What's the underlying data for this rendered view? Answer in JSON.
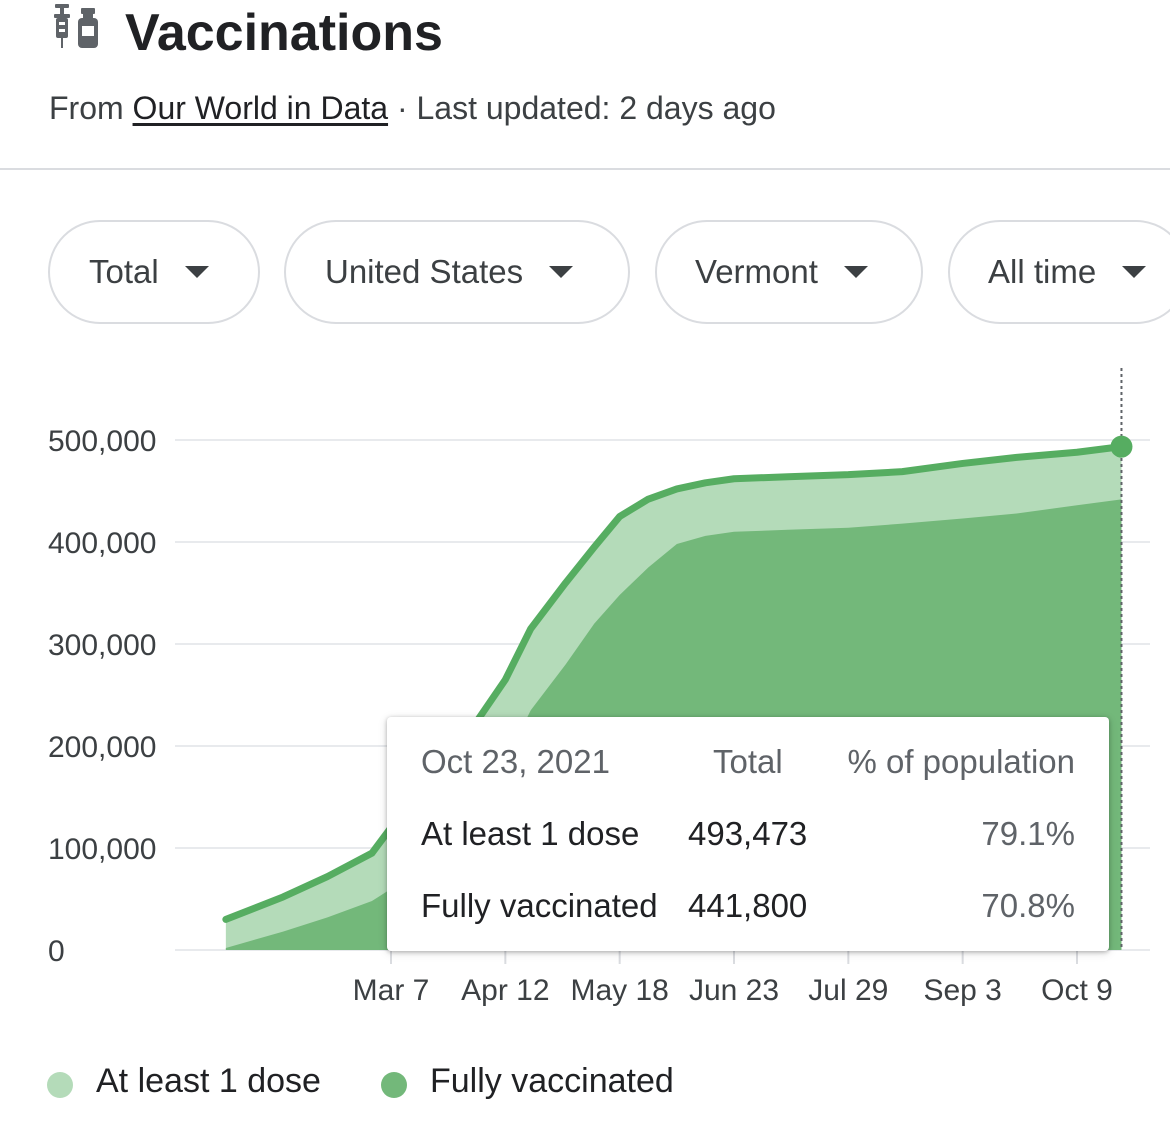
{
  "header": {
    "icon": "vaccine-icon",
    "title": "Vaccinations",
    "source_prefix": "From",
    "source_link": "Our World in Data",
    "updated": " · Last updated: 2 days ago"
  },
  "filters": [
    {
      "label": "Total"
    },
    {
      "label": "United States"
    },
    {
      "label": "Vermont"
    },
    {
      "label": "All time"
    }
  ],
  "tooltip": {
    "date": "Oct 23, 2021",
    "col_total": "Total",
    "col_pct": "% of population",
    "rows": [
      {
        "label": "At least 1 dose",
        "total": "493,473",
        "pct": "79.1%"
      },
      {
        "label": "Fully vaccinated",
        "total": "441,800",
        "pct": "70.8%"
      }
    ]
  },
  "colors": {
    "at_least_one_fill": "#b4dbb9",
    "fully_fill": "#73b87a",
    "line": "#56ad61"
  },
  "chart_data": {
    "type": "area",
    "title": "",
    "xlabel": "",
    "ylabel": "",
    "ylim": [
      0,
      500000
    ],
    "yticks": [
      "0",
      "100,000",
      "200,000",
      "300,000",
      "400,000",
      "500,000"
    ],
    "xticks": [
      "Mar 7",
      "Apr 12",
      "May 18",
      "Jun 23",
      "Jul 29",
      "Sep 3",
      "Oct 9"
    ],
    "grid": true,
    "legend": "bottom",
    "x": [
      "Jan 14",
      "Feb 1",
      "Feb 15",
      "Mar 1",
      "Mar 7",
      "Mar 20",
      "Apr 1",
      "Apr 12",
      "Apr 20",
      "May 1",
      "May 10",
      "May 18",
      "May 27",
      "Jun 5",
      "Jun 14",
      "Jun 23",
      "Jul 10",
      "Jul 29",
      "Aug 15",
      "Sep 3",
      "Sep 20",
      "Oct 9",
      "Oct 23"
    ],
    "series": [
      {
        "name": "At least 1 dose",
        "values": [
          30000,
          52000,
          72000,
          95000,
          120000,
          165000,
          215000,
          265000,
          315000,
          360000,
          395000,
          425000,
          442000,
          452000,
          458000,
          462000,
          464000,
          466000,
          469000,
          477000,
          483000,
          488000,
          493473
        ]
      },
      {
        "name": "Fully vaccinated",
        "values": [
          2000,
          18000,
          32000,
          48000,
          60000,
          105000,
          145000,
          185000,
          235000,
          280000,
          320000,
          348000,
          375000,
          398000,
          406000,
          410000,
          412000,
          414000,
          418000,
          423000,
          428000,
          436000,
          441800
        ]
      }
    ]
  },
  "legend_items": [
    {
      "label": "At least 1 dose"
    },
    {
      "label": "Fully vaccinated"
    }
  ]
}
